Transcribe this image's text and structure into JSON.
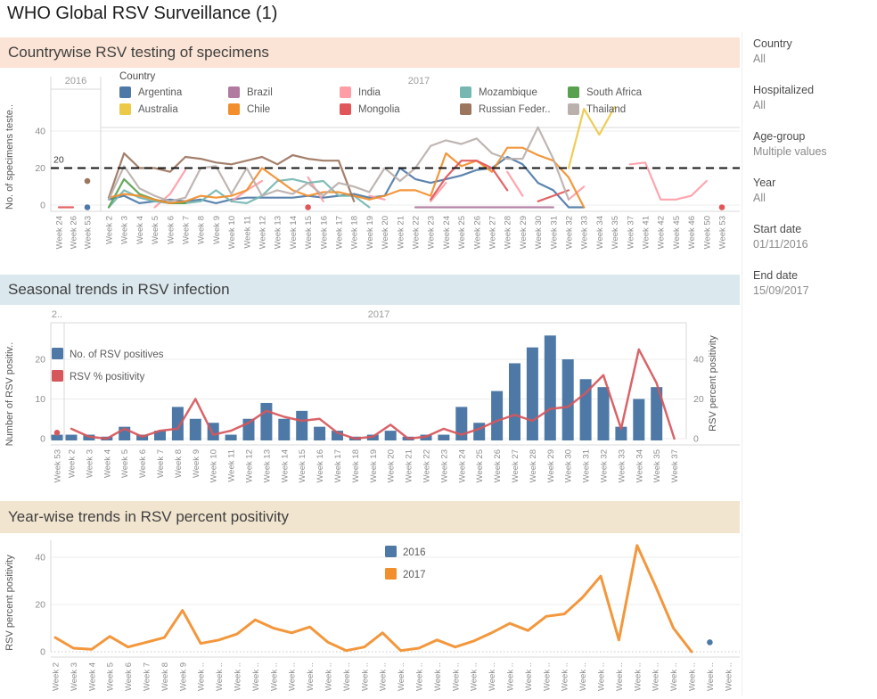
{
  "page": {
    "title": "WHO Global RSV Surveillance (1)"
  },
  "sidebar": {
    "filters": [
      {
        "label": "Country",
        "value": "All"
      },
      {
        "label": "Hospitalized",
        "value": "All"
      },
      {
        "label": "Age-group",
        "value": "Multiple values"
      },
      {
        "label": "Year",
        "value": "All"
      },
      {
        "label": "Start date",
        "value": "01/11/2016"
      },
      {
        "label": "End date",
        "value": "15/09/2017"
      }
    ]
  },
  "chart_data": [
    {
      "id": "countrywise",
      "type": "line",
      "title": "Countrywise RSV testing of specimens",
      "ylabel": "No. of specimens teste..",
      "yticks": [
        0,
        20,
        40
      ],
      "ref_line": {
        "value": 20,
        "label": "20",
        "style": "dashed-black"
      },
      "legend_title": "Country",
      "panes": [
        {
          "year": "2016",
          "weeks": [
            "Week 24",
            "Week 26",
            "Week 53"
          ]
        },
        {
          "year": "2017",
          "weeks": [
            "Week 2",
            "Week 3",
            "Week 4",
            "Week 5",
            "Week 6",
            "Week 7",
            "Week 8",
            "Week 9",
            "Week 10",
            "Week 11",
            "Week 12",
            "Week 13",
            "Week 14",
            "Week 15",
            "Week 16",
            "Week 17",
            "Week 18",
            "Week 19",
            "Week 20",
            "Week 21",
            "Week 22",
            "Week 23",
            "Week 24",
            "Week 25",
            "Week 26",
            "Week 27",
            "Week 28",
            "Week 29",
            "Week 30",
            "Week 31",
            "Week 32",
            "Week 33",
            "Week 34",
            "Week 35",
            "Week 37",
            "Week 41",
            "Week 42",
            "Week 45",
            "Week 46",
            "Week 50",
            "Week 53"
          ]
        }
      ],
      "series": [
        {
          "name": "Argentina",
          "color": "#4e79a7",
          "values_2016": [
            null,
            null,
            0
          ],
          "values_2017": [
            3,
            5,
            1,
            2,
            3,
            2,
            3,
            1,
            3,
            4,
            4,
            4,
            4,
            5,
            4,
            5,
            6,
            4,
            5,
            20,
            14,
            12,
            14,
            16,
            19,
            20,
            26,
            22,
            12,
            8,
            0,
            0,
            null,
            null,
            null,
            null,
            null,
            null,
            null,
            null,
            null
          ]
        },
        {
          "name": "Brazil",
          "color": "#b07aa1",
          "values_2016": [
            null,
            null,
            null
          ],
          "values_2017": [
            null,
            null,
            null,
            null,
            null,
            null,
            null,
            null,
            null,
            null,
            null,
            null,
            null,
            null,
            null,
            null,
            null,
            null,
            null,
            null,
            0,
            0,
            0,
            0,
            0,
            0,
            0,
            0,
            0,
            0,
            null,
            null,
            null,
            null,
            null,
            null,
            null,
            null,
            null,
            null,
            null
          ]
        },
        {
          "name": "India",
          "color": "#ff9da7",
          "values_2016": [
            null,
            null,
            null
          ],
          "values_2017": [
            null,
            null,
            null,
            0,
            6,
            19,
            null,
            null,
            2,
            8,
            13,
            null,
            null,
            15,
            2,
            null,
            null,
            5,
            3,
            null,
            null,
            2,
            12,
            null,
            null,
            null,
            18,
            5,
            null,
            null,
            3,
            10,
            null,
            null,
            22,
            23,
            3,
            3,
            5,
            13,
            null
          ]
        },
        {
          "name": "Mozambique",
          "color": "#76b7b2",
          "values_2016": [
            null,
            null,
            null
          ],
          "values_2017": [
            0,
            8,
            4,
            2,
            1,
            1,
            2,
            8,
            2,
            1,
            5,
            13,
            14,
            12,
            13,
            5,
            5,
            0,
            null,
            null,
            null,
            null,
            null,
            null,
            null,
            null,
            null,
            null,
            null,
            null,
            null,
            null,
            null,
            null,
            null,
            null,
            null,
            null,
            null,
            null,
            null
          ]
        },
        {
          "name": "South Africa",
          "color": "#59a14f",
          "values_2016": [
            null,
            null,
            null
          ],
          "values_2017": [
            0,
            14,
            6,
            3,
            1,
            1,
            null,
            null,
            null,
            null,
            null,
            null,
            null,
            null,
            null,
            null,
            null,
            null,
            null,
            null,
            null,
            null,
            null,
            null,
            null,
            null,
            null,
            null,
            null,
            null,
            null,
            null,
            null,
            null,
            null,
            null,
            null,
            null,
            null,
            null,
            null
          ]
        },
        {
          "name": "Australia",
          "color": "#edc948",
          "values_2016": [
            null,
            null,
            null
          ],
          "values_2017": [
            null,
            null,
            null,
            null,
            null,
            null,
            null,
            null,
            null,
            null,
            null,
            null,
            null,
            null,
            null,
            null,
            null,
            null,
            null,
            null,
            null,
            null,
            null,
            null,
            null,
            null,
            null,
            null,
            null,
            null,
            20,
            52,
            38,
            53,
            null,
            null,
            null,
            null,
            null,
            null,
            null
          ]
        },
        {
          "name": "Chile",
          "color": "#f28e2b",
          "values_2016": [
            null,
            null,
            null
          ],
          "values_2017": [
            4,
            6,
            5,
            3,
            1,
            2,
            5,
            4,
            5,
            8,
            20,
            14,
            8,
            5,
            7,
            7,
            5,
            3,
            5,
            8,
            8,
            5,
            28,
            21,
            24,
            18,
            31,
            31,
            27,
            24,
            15,
            0,
            null,
            null,
            null,
            null,
            null,
            null,
            null,
            null,
            null
          ]
        },
        {
          "name": "Mongolia",
          "color": "#e15759",
          "values_2016": [
            0,
            0,
            null
          ],
          "values_2017": [
            null,
            null,
            null,
            null,
            null,
            null,
            null,
            null,
            null,
            null,
            null,
            null,
            null,
            0,
            null,
            null,
            null,
            null,
            null,
            null,
            null,
            3,
            15,
            24,
            24,
            20,
            8,
            null,
            2,
            5,
            8,
            null,
            null,
            null,
            null,
            null,
            null,
            null,
            null,
            null,
            0
          ]
        },
        {
          "name": "Russian Feder..",
          "color": "#9c755f",
          "values_2016": [
            null,
            null,
            13
          ],
          "values_2017": [
            4,
            28,
            20,
            20,
            18,
            26,
            25,
            23,
            22,
            24,
            26,
            22,
            27,
            25,
            24,
            24,
            2,
            null,
            null,
            null,
            null,
            null,
            null,
            null,
            null,
            null,
            null,
            null,
            null,
            null,
            null,
            null,
            null,
            null,
            null,
            null,
            null,
            null,
            null,
            null,
            null
          ]
        },
        {
          "name": "Thailand",
          "color": "#bab0ac",
          "values_2016": [
            null,
            null,
            null
          ],
          "values_2017": [
            3,
            21,
            9,
            5,
            2,
            4,
            20,
            21,
            6,
            20,
            5,
            8,
            6,
            12,
            5,
            12,
            10,
            7,
            20,
            13,
            20,
            32,
            35,
            33,
            36,
            28,
            25,
            25,
            42,
            25,
            3,
            null,
            null,
            null,
            null,
            null,
            null,
            null,
            null,
            null,
            null
          ]
        }
      ]
    },
    {
      "id": "seasonal",
      "type": "bar+line dual axis",
      "title": "Seasonal trends in RSV infection",
      "ylabel_left": "Number of RSV positiv..",
      "ylabel_right": "RSV percent positivity",
      "yticks_left": [
        0,
        10,
        20
      ],
      "yticks_right": [
        0,
        20,
        40
      ],
      "bar_color": "#4e79a7",
      "line_color": "#d6575b",
      "legend": [
        {
          "label": "No. of RSV positives",
          "color": "#4e79a7"
        },
        {
          "label": "RSV % positivity",
          "color": "#d6575b"
        }
      ],
      "panes": [
        {
          "year": "2..",
          "weeks": [
            "Week 53"
          ]
        },
        {
          "year": "2017",
          "weeks": [
            "Week 2",
            "Week 3",
            "Week 4",
            "Week 5",
            "Week 6",
            "Week 7",
            "Week 8",
            "Week 9",
            "Week 10",
            "Week 11",
            "Week 12",
            "Week 13",
            "Week 14",
            "Week 15",
            "Week 16",
            "Week 17",
            "Week 18",
            "Week 19",
            "Week 20",
            "Week 21",
            "Week 22",
            "Week 23",
            "Week 24",
            "Week 25",
            "Week 26",
            "Week 27",
            "Week 28",
            "Week 29",
            "Week 30",
            "Week 31",
            "Week 32",
            "Week 33",
            "Week 34",
            "Week 35",
            "Week 37"
          ]
        }
      ],
      "bars_2016": [
        1
      ],
      "bars_2017": [
        1,
        1,
        0.5,
        3,
        1,
        2,
        8,
        5,
        4,
        1,
        5,
        9,
        5,
        7,
        3,
        2,
        0.5,
        1,
        2,
        0.5,
        1,
        1,
        8,
        4,
        12,
        19,
        23,
        26,
        20,
        15,
        13,
        3,
        10,
        13,
        0
      ],
      "line_2016": [
        3
      ],
      "line_2017": [
        5,
        1,
        0,
        5,
        1,
        4,
        5,
        20,
        2,
        4,
        8,
        14,
        11,
        9,
        10,
        3,
        0,
        1,
        7,
        0,
        1,
        5,
        2,
        5,
        9,
        12,
        9,
        15,
        16,
        23,
        32,
        5,
        45,
        28,
        0
      ]
    },
    {
      "id": "yearwise",
      "type": "line",
      "title": "Year-wise trends in RSV percent positivity",
      "ylabel": "RSV percent positivity",
      "yticks": [
        0,
        20,
        40
      ],
      "legend": [
        {
          "label": "2016",
          "color": "#4e79a7"
        },
        {
          "label": "2017",
          "color": "#f28e2b"
        }
      ],
      "x_labels": [
        "Week 2",
        "Week 3",
        "Week 4",
        "Week 5",
        "Week 6",
        "Week 7",
        "Week 8",
        "Week 9",
        "Week ..",
        "Week ..",
        "Week ..",
        "Week ..",
        "Week ..",
        "Week ..",
        "Week ..",
        "Week ..",
        "Week ..",
        "Week ..",
        "Week ..",
        "Week ..",
        "Week ..",
        "Week ..",
        "Week ..",
        "Week ..",
        "Week ..",
        "Week ..",
        "Week ..",
        "Week ..",
        "Week ..",
        "Week ..",
        "Week ..",
        "Week ..",
        "Week ..",
        "Week ..",
        "Week ..",
        "Week ..",
        "Week ..",
        "Week .."
      ],
      "values_2017": [
        6,
        1.5,
        1,
        6.5,
        2,
        4,
        6,
        17.5,
        3.5,
        5,
        7.5,
        13.5,
        10,
        8,
        10.5,
        4,
        0.5,
        2,
        8,
        0.5,
        1.5,
        5,
        2,
        4.5,
        8,
        12,
        9,
        15,
        16,
        23,
        32,
        5,
        45,
        28,
        10,
        0
      ],
      "values_2016": [
        null,
        null,
        null,
        null,
        null,
        null,
        null,
        null,
        null,
        null,
        null,
        null,
        null,
        null,
        null,
        null,
        null,
        null,
        null,
        null,
        null,
        null,
        null,
        null,
        null,
        null,
        null,
        null,
        null,
        null,
        null,
        null,
        null,
        null,
        null,
        null,
        4,
        null
      ]
    }
  ]
}
